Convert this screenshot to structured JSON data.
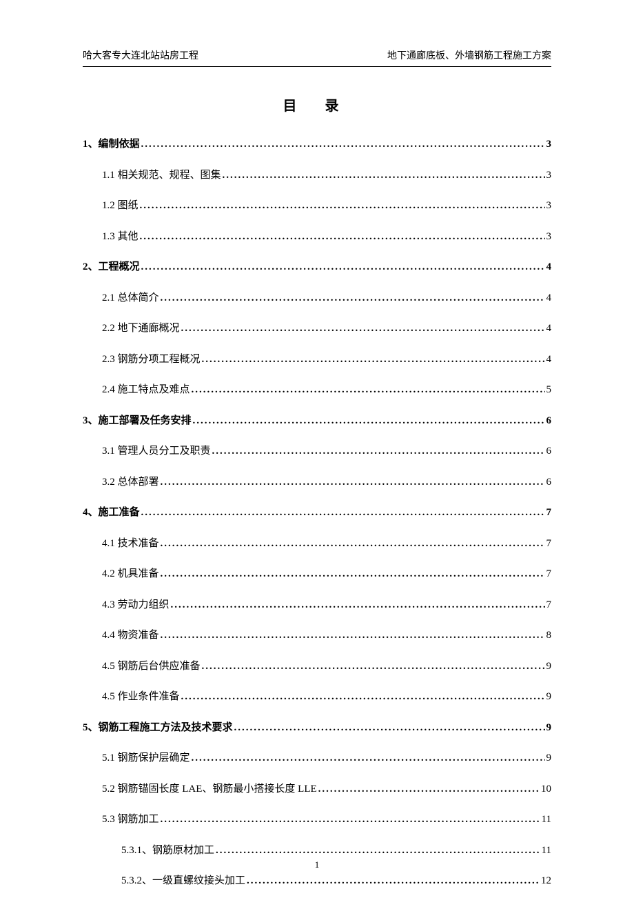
{
  "header": {
    "left": "哈大客专大连北站站房工程",
    "right": "地下通廊底板、外墙钢筋工程施工方案"
  },
  "title": "目 录",
  "toc": [
    {
      "level": 1,
      "label": "1、编制依据",
      "page": "3"
    },
    {
      "level": 2,
      "label": "1.1 相关规范、规程、图集",
      "page": "3"
    },
    {
      "level": 2,
      "label": "1.2 图纸",
      "page": "3"
    },
    {
      "level": 2,
      "label": "1.3 其他",
      "page": "3"
    },
    {
      "level": 1,
      "label": "2、工程概况",
      "page": "4"
    },
    {
      "level": 2,
      "label": "2.1 总体简介",
      "page": "4"
    },
    {
      "level": 2,
      "label": "2.2 地下通廊概况",
      "page": "4"
    },
    {
      "level": 2,
      "label": "2.3 钢筋分项工程概况",
      "page": "4"
    },
    {
      "level": 2,
      "label": "2.4 施工特点及难点",
      "page": "5"
    },
    {
      "level": 1,
      "label": "3、施工部署及任务安排",
      "page": "6"
    },
    {
      "level": 2,
      "label": "3.1 管理人员分工及职责",
      "page": "6"
    },
    {
      "level": 2,
      "label": "3.2 总体部署",
      "page": "6"
    },
    {
      "level": 1,
      "label": "4、施工准备",
      "page": "7"
    },
    {
      "level": 2,
      "label": "4.1 技术准备",
      "page": "7"
    },
    {
      "level": 2,
      "label": "4.2 机具准备",
      "page": "7"
    },
    {
      "level": 2,
      "label": "4.3 劳动力组织",
      "page": "7"
    },
    {
      "level": 2,
      "label": "4.4 物资准备",
      "page": "8"
    },
    {
      "level": 2,
      "label": "4.5 钢筋后台供应准备",
      "page": "9"
    },
    {
      "level": 2,
      "label": "4.5 作业条件准备",
      "page": "9"
    },
    {
      "level": 1,
      "label": "5、钢筋工程施工方法及技术要求",
      "page": "9"
    },
    {
      "level": 2,
      "label": "5.1 钢筋保护层确定",
      "page": "9"
    },
    {
      "level": 2,
      "label": "5.2 钢筋锚固长度 LAE、钢筋最小搭接长度 LLE",
      "page": "10"
    },
    {
      "level": 2,
      "label": "5.3 钢筋加工",
      "page": "11"
    },
    {
      "level": 3,
      "label": "5.3.1、钢筋原材加工",
      "page": "11"
    },
    {
      "level": 3,
      "label": "5.3.2、一级直螺纹接头加工",
      "page": "12"
    }
  ],
  "footer": {
    "page_number": "1"
  }
}
